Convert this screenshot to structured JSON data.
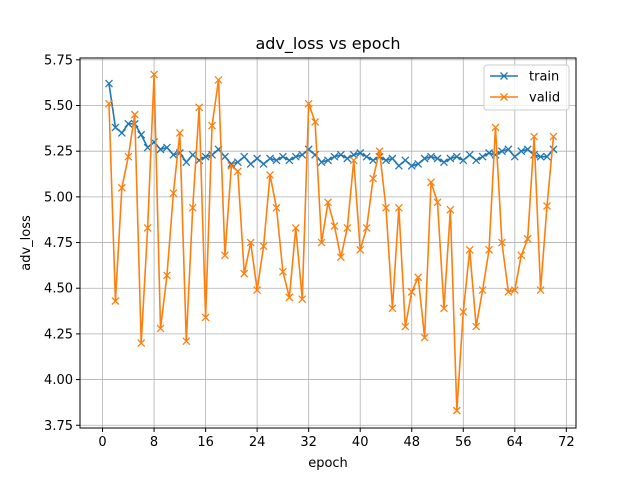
{
  "chart_data": {
    "type": "line",
    "title": "adv_loss vs epoch",
    "xlabel": "epoch",
    "ylabel": "adv_loss",
    "xlim": [
      -3.5,
      73.5
    ],
    "ylim": [
      3.735,
      5.76
    ],
    "xticks": [
      0,
      8,
      16,
      24,
      32,
      40,
      48,
      56,
      64,
      72
    ],
    "yticks": [
      3.75,
      4.0,
      4.25,
      4.5,
      4.75,
      5.0,
      5.25,
      5.5,
      5.75
    ],
    "ytick_labels": [
      "3.75",
      "4.00",
      "4.25",
      "4.50",
      "4.75",
      "5.00",
      "5.25",
      "5.50",
      "5.75"
    ],
    "grid": true,
    "legend_position": "top-right",
    "marker": "x",
    "series": [
      {
        "name": "train",
        "color": "#1f77b4",
        "x": [
          1,
          2,
          3,
          4,
          5,
          6,
          7,
          8,
          9,
          10,
          11,
          12,
          13,
          14,
          15,
          16,
          17,
          18,
          19,
          20,
          21,
          22,
          23,
          24,
          25,
          26,
          27,
          28,
          29,
          30,
          31,
          32,
          33,
          34,
          35,
          36,
          37,
          38,
          39,
          40,
          41,
          42,
          43,
          44,
          45,
          46,
          47,
          48,
          49,
          50,
          51,
          52,
          53,
          54,
          55,
          56,
          57,
          58,
          59,
          60,
          61,
          62,
          63,
          64,
          65,
          66,
          67,
          68,
          69,
          70
        ],
        "y": [
          5.62,
          5.38,
          5.35,
          5.4,
          5.4,
          5.34,
          5.27,
          5.3,
          5.26,
          5.27,
          5.23,
          5.24,
          5.19,
          5.23,
          5.2,
          5.22,
          5.23,
          5.26,
          5.22,
          5.18,
          5.19,
          5.22,
          5.18,
          5.21,
          5.18,
          5.21,
          5.2,
          5.22,
          5.2,
          5.22,
          5.23,
          5.26,
          5.23,
          5.19,
          5.2,
          5.22,
          5.23,
          5.21,
          5.23,
          5.24,
          5.22,
          5.2,
          5.22,
          5.2,
          5.21,
          5.17,
          5.2,
          5.17,
          5.18,
          5.21,
          5.22,
          5.21,
          5.19,
          5.21,
          5.22,
          5.2,
          5.23,
          5.2,
          5.22,
          5.24,
          5.23,
          5.25,
          5.26,
          5.22,
          5.25,
          5.26,
          5.23,
          5.22,
          5.22,
          5.26
        ]
      },
      {
        "name": "valid",
        "color": "#ff7f0e",
        "x": [
          1,
          2,
          3,
          4,
          5,
          6,
          7,
          8,
          9,
          10,
          11,
          12,
          13,
          14,
          15,
          16,
          17,
          18,
          19,
          20,
          21,
          22,
          23,
          24,
          25,
          26,
          27,
          28,
          29,
          30,
          31,
          32,
          33,
          34,
          35,
          36,
          37,
          38,
          39,
          40,
          41,
          42,
          43,
          44,
          45,
          46,
          47,
          48,
          49,
          50,
          51,
          52,
          53,
          54,
          55,
          56,
          57,
          58,
          59,
          60,
          61,
          62,
          63,
          64,
          65,
          66,
          67,
          68,
          69,
          70
        ],
        "y": [
          5.51,
          4.43,
          5.05,
          5.22,
          5.45,
          4.2,
          4.83,
          5.67,
          4.28,
          4.57,
          5.02,
          5.35,
          4.21,
          4.94,
          5.49,
          4.34,
          5.39,
          5.64,
          4.68,
          5.17,
          5.14,
          4.58,
          4.75,
          4.49,
          4.73,
          5.12,
          4.94,
          4.59,
          4.45,
          4.83,
          4.44,
          5.51,
          5.41,
          4.75,
          4.97,
          4.84,
          4.67,
          4.83,
          5.2,
          4.71,
          4.83,
          5.1,
          5.25,
          4.94,
          4.39,
          4.94,
          4.29,
          4.48,
          4.56,
          4.23,
          5.08,
          4.97,
          4.39,
          4.93,
          3.83,
          4.37,
          4.71,
          4.29,
          4.49,
          4.71,
          5.38,
          4.75,
          4.48,
          4.49,
          4.68,
          4.77,
          5.33,
          4.49,
          4.95,
          5.33
        ]
      }
    ]
  }
}
